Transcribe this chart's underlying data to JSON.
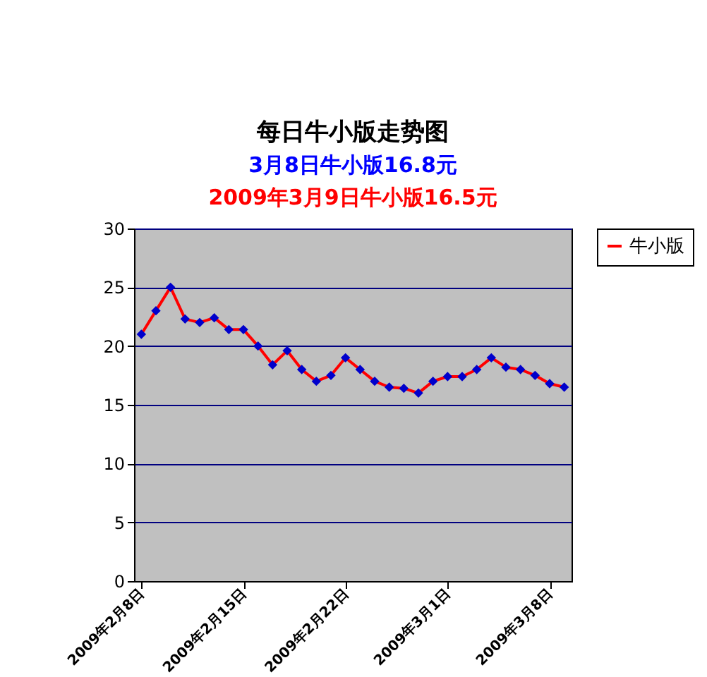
{
  "chart_data": {
    "type": "line",
    "title": "每日牛小版走势图",
    "subtitle": "3月8日牛小版16.8元",
    "annotations": [
      "2009年3月9日牛小版16.5元"
    ],
    "x": [
      "2009-02-08",
      "2009-02-09",
      "2009-02-10",
      "2009-02-11",
      "2009-02-12",
      "2009-02-13",
      "2009-02-14",
      "2009-02-15",
      "2009-02-16",
      "2009-02-17",
      "2009-02-18",
      "2009-02-19",
      "2009-02-20",
      "2009-02-21",
      "2009-02-22",
      "2009-02-23",
      "2009-02-24",
      "2009-02-25",
      "2009-02-26",
      "2009-02-27",
      "2009-02-28",
      "2009-03-01",
      "2009-03-02",
      "2009-03-03",
      "2009-03-04",
      "2009-03-05",
      "2009-03-06",
      "2009-03-07",
      "2009-03-08",
      "2009-03-09"
    ],
    "series": [
      {
        "name": "牛小版",
        "color": "#ff0000",
        "values": [
          21,
          23,
          25,
          22.3,
          22,
          22.4,
          21.4,
          21.4,
          20,
          18.4,
          19.6,
          18,
          17,
          17.5,
          19,
          18,
          17,
          16.5,
          16.4,
          16,
          17,
          17.4,
          17.4,
          18,
          19,
          18.2,
          18,
          17.5,
          16.8,
          16.5
        ]
      }
    ],
    "xlim": [
      "2009-02-07T12:00",
      "2009-03-09T12:00"
    ],
    "xticks": [
      {
        "value": "2009-02-08",
        "label": "2009年2月8日"
      },
      {
        "value": "2009-02-15",
        "label": "2009年2月15日"
      },
      {
        "value": "2009-02-22",
        "label": "2009年2月22日"
      },
      {
        "value": "2009-03-01",
        "label": "2009年3月1日"
      },
      {
        "value": "2009-03-08",
        "label": "2009年3月8日"
      }
    ],
    "ylim": [
      0,
      30
    ],
    "yticks": [
      0,
      5,
      10,
      15,
      20,
      25,
      30
    ],
    "grid": "y",
    "legend": "right",
    "marker": "diamond",
    "line_style": "solid"
  }
}
